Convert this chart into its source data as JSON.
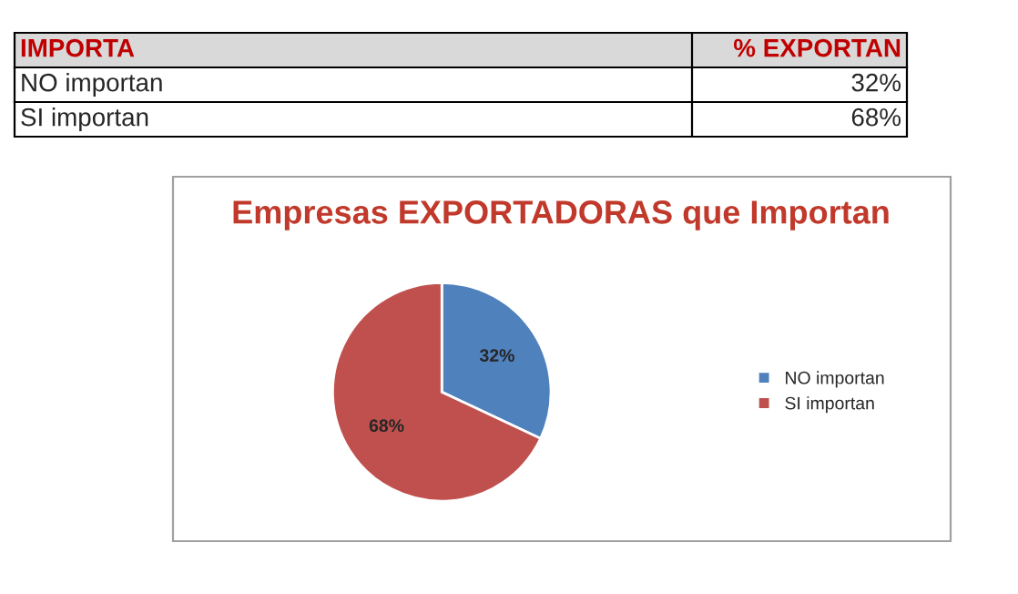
{
  "chart_data": {
    "type": "pie",
    "title": "Empresas EXPORTADORAS que Importan",
    "categories": [
      "NO importan",
      "SI importan"
    ],
    "values": [
      32,
      68
    ],
    "value_labels": [
      "32%",
      "68%"
    ],
    "colors": [
      "#4f81bd",
      "#c0504d"
    ],
    "annotations": [
      "IMPORTA",
      "% EXPORTAN"
    ],
    "legend": "right"
  }
}
